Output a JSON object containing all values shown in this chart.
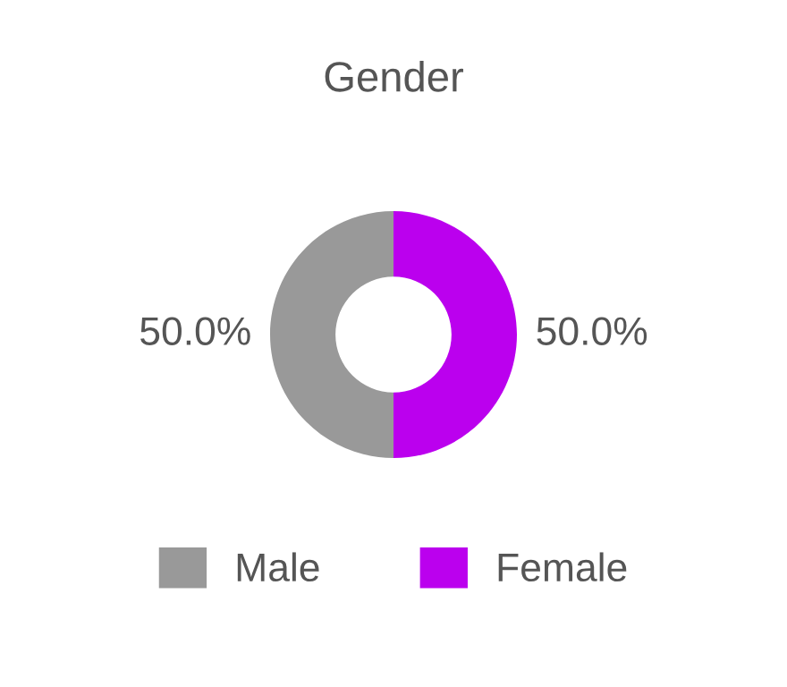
{
  "chart_data": {
    "type": "donut",
    "title": "Gender",
    "categories": [
      "Male",
      "Female"
    ],
    "values": [
      50.0,
      50.0
    ],
    "colors": [
      "#999999",
      "#bb00ee"
    ],
    "value_labels": [
      "50.0%",
      "50.0%"
    ],
    "legend": "bottom"
  }
}
